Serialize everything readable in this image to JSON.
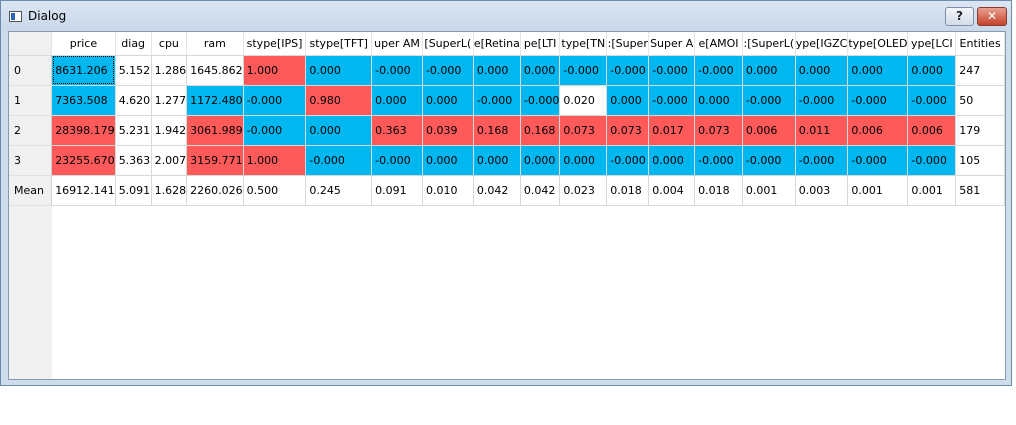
{
  "window": {
    "title": "Dialog",
    "help_label": "?",
    "close_label": "✕"
  },
  "colors": {
    "blue": "#00b7f0",
    "red": "#ff5a5a",
    "white": "#ffffff"
  },
  "table": {
    "columns": [
      "price",
      "diag",
      "cpu",
      "ram",
      "stype[IPS]",
      "stype[TFT]",
      "uper AM",
      "[SuperL(",
      "e[Retina",
      "pe[LTI",
      "type[TN",
      ":[Super",
      "Super A",
      "e[AMOI",
      ":[SuperL(",
      "ype[IGZC",
      "type[OLED",
      "ype[LCI",
      "Entities"
    ],
    "rows": [
      {
        "header": "0",
        "cells": [
          "8631.206",
          "5.152",
          "1.286",
          "1645.862",
          "1.000",
          "0.000",
          "-0.000",
          "-0.000",
          "0.000",
          "0.000",
          "-0.000",
          "-0.000",
          "-0.000",
          "-0.000",
          "0.000",
          "0.000",
          "0.000",
          "0.000",
          "247"
        ],
        "colors": [
          "blue",
          "white",
          "white",
          "white",
          "red",
          "blue",
          "blue",
          "blue",
          "blue",
          "blue",
          "blue",
          "blue",
          "blue",
          "blue",
          "blue",
          "blue",
          "blue",
          "blue",
          "white"
        ]
      },
      {
        "header": "1",
        "cells": [
          "7363.508",
          "4.620",
          "1.277",
          "1172.480",
          "-0.000",
          "0.980",
          "0.000",
          "0.000",
          "-0.000",
          "-0.000",
          "0.020",
          "0.000",
          "-0.000",
          "0.000",
          "-0.000",
          "-0.000",
          "-0.000",
          "-0.000",
          "50"
        ],
        "colors": [
          "blue",
          "white",
          "white",
          "blue",
          "blue",
          "red",
          "blue",
          "blue",
          "blue",
          "blue",
          "white",
          "blue",
          "blue",
          "blue",
          "blue",
          "blue",
          "blue",
          "blue",
          "white"
        ]
      },
      {
        "header": "2",
        "cells": [
          "28398.179",
          "5.231",
          "1.942",
          "3061.989",
          "-0.000",
          "0.000",
          "0.363",
          "0.039",
          "0.168",
          "0.168",
          "0.073",
          "0.073",
          "0.017",
          "0.073",
          "0.006",
          "0.011",
          "0.006",
          "0.006",
          "179"
        ],
        "colors": [
          "red",
          "white",
          "white",
          "red",
          "blue",
          "blue",
          "red",
          "red",
          "red",
          "red",
          "red",
          "red",
          "red",
          "red",
          "red",
          "red",
          "red",
          "red",
          "white"
        ]
      },
      {
        "header": "3",
        "cells": [
          "23255.670",
          "5.363",
          "2.007",
          "3159.771",
          "1.000",
          "-0.000",
          "-0.000",
          "0.000",
          "0.000",
          "0.000",
          "0.000",
          "-0.000",
          "0.000",
          "-0.000",
          "-0.000",
          "-0.000",
          "-0.000",
          "-0.000",
          "105"
        ],
        "colors": [
          "red",
          "white",
          "white",
          "red",
          "red",
          "blue",
          "blue",
          "blue",
          "blue",
          "blue",
          "blue",
          "blue",
          "blue",
          "blue",
          "blue",
          "blue",
          "blue",
          "blue",
          "white"
        ]
      },
      {
        "header": "Mean",
        "cells": [
          "16912.141",
          "5.091",
          "1.628",
          "2260.026",
          "0.500",
          "0.245",
          "0.091",
          "0.010",
          "0.042",
          "0.042",
          "0.023",
          "0.018",
          "0.004",
          "0.018",
          "0.001",
          "0.003",
          "0.001",
          "0.001",
          "581"
        ],
        "colors": [
          "white",
          "white",
          "white",
          "white",
          "white",
          "white",
          "white",
          "white",
          "white",
          "white",
          "white",
          "white",
          "white",
          "white",
          "white",
          "white",
          "white",
          "white",
          "white"
        ]
      }
    ]
  }
}
